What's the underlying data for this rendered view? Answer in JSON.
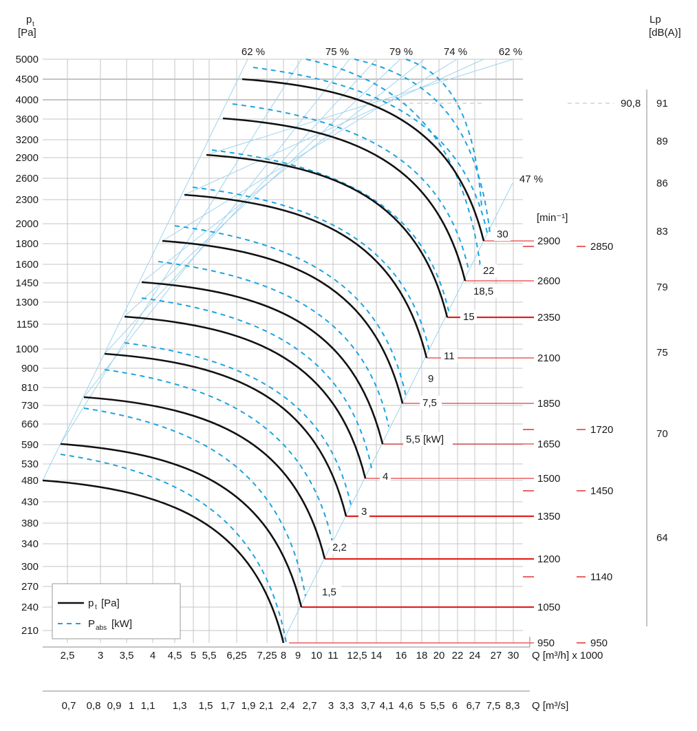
{
  "chart_data": {
    "type": "line",
    "y_axis_label": "p",
    "y_axis_label_sub": "t",
    "y_axis_unit": "[Pa]",
    "right_axis_label": "Lp",
    "right_axis_unit": "[dB(A)]",
    "y_ticks": [
      "5000",
      "4500",
      "4000",
      "3600",
      "3200",
      "2900",
      "2600",
      "2300",
      "2000",
      "1800",
      "1600",
      "1450",
      "1300",
      "1150",
      "1000",
      "900",
      "810",
      "730",
      "660",
      "590",
      "530",
      "480",
      "430",
      "380",
      "340",
      "300",
      "270",
      "240",
      "210"
    ],
    "x_ticks_m3h": [
      "2,5",
      "3",
      "3,5",
      "4",
      "4,5",
      "5",
      "5,5",
      "6,25",
      "7,25",
      "8",
      "9",
      "10",
      "11",
      "12,5",
      "14",
      "16",
      "18",
      "20",
      "22",
      "24",
      "27",
      "30"
    ],
    "x_label_m3h": "Q [m³/h] x 1000",
    "x_ticks_m3s": [
      "0,7",
      "0,8",
      "0,9",
      "1",
      "1,1",
      "1,3",
      "1,5",
      "1,7",
      "1,9",
      "2,1",
      "2,4",
      "2,7",
      "3",
      "3,3",
      "3,7",
      "4,1",
      "4,6",
      "5",
      "5,5",
      "6",
      "6,7",
      "7,5",
      "8,3"
    ],
    "x_label_m3s": "Q [m³/s]",
    "efficiency_labels": [
      "62 %",
      "75 %",
      "79 %",
      "74 %",
      "62 %",
      "47 %"
    ],
    "rpm_unit": "[min⁻¹]",
    "motor_unit_label": "5,5 [kW]",
    "series": [
      {
        "rpm": "950",
        "kw": "",
        "pt_max": 480,
        "q_max_m3h": 8
      },
      {
        "rpm": "1050",
        "kw": "1,5",
        "pt_max": 590,
        "q_max_m3h": 9
      },
      {
        "rpm": "1200",
        "kw": "2,2",
        "pt_max": 760,
        "q_max_m3h": 10.5
      },
      {
        "rpm": "1350",
        "kw": "3",
        "pt_max": 960,
        "q_max_m3h": 12
      },
      {
        "rpm": "1500",
        "kw": "4",
        "pt_max": 1150,
        "q_max_m3h": 13
      },
      {
        "rpm": "1650",
        "kw": "5,5",
        "pt_max": 1420,
        "q_max_m3h": 14.5
      },
      {
        "rpm": "1850",
        "kw": "7,5",
        "pt_max": 1800,
        "q_max_m3h": 16.5
      },
      {
        "rpm": "2100",
        "kw": "11",
        "pt_max": 2350,
        "q_max_m3h": 18.5
      },
      {
        "rpm": "2350",
        "kw": "15",
        "pt_max": 2900,
        "q_max_m3h": 20.5
      },
      {
        "rpm": "2600",
        "kw": "18,5",
        "pt_max": 3600,
        "q_max_m3h": 23
      },
      {
        "rpm": "2900",
        "kw": "30",
        "pt_max": 4500,
        "q_max_m3h": 25
      }
    ],
    "extra_kw_labels": [
      "9",
      "22"
    ],
    "extra_rpm_labels": [
      "2850",
      "1720",
      "1450",
      "1140",
      "950"
    ],
    "lp_ticks": [
      "91",
      "89",
      "86",
      "83",
      "79",
      "75",
      "70",
      "64"
    ],
    "lp_marker": "90,8",
    "legend": [
      {
        "name": "p",
        "sub": "t",
        "unit": "[Pa]",
        "style": "solid"
      },
      {
        "name": "P",
        "sub": "abs",
        "unit": "[kW]",
        "style": "dashed"
      }
    ],
    "legend_position": "bottom-left",
    "grid": true
  }
}
